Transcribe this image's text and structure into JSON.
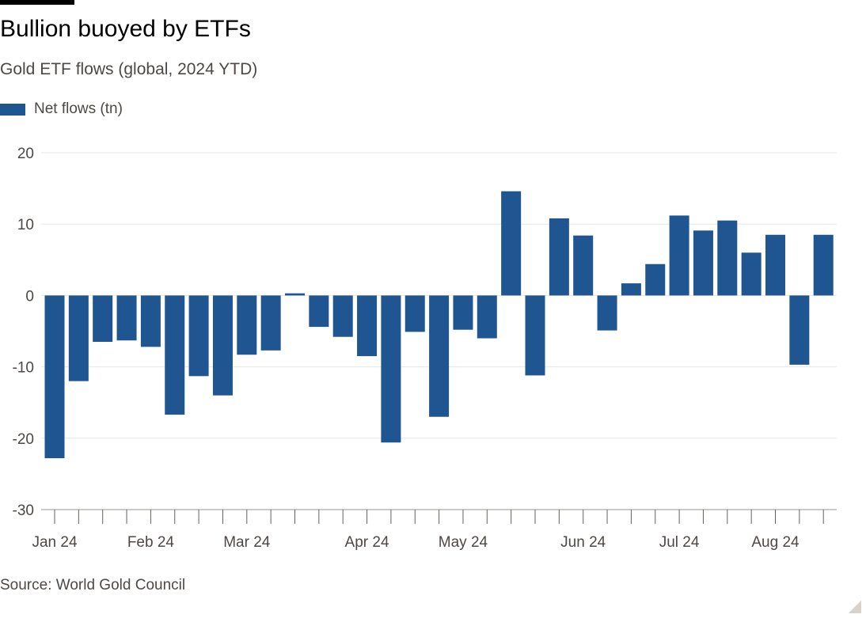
{
  "header": {
    "title": "Bullion buoyed by ETFs",
    "subtitle": "Gold ETF flows (global, 2024 YTD)"
  },
  "legend": {
    "label": "Net flows (tn)"
  },
  "footer": {
    "source": "Source: World Gold Council"
  },
  "colors": {
    "bar": "#1f5591",
    "grid": "#e7e6e4",
    "axis": "#66605c",
    "tick_label": "#4d4845"
  },
  "chart_data": {
    "type": "bar",
    "title": "Bullion buoyed by ETFs",
    "subtitle": "Gold ETF flows (global, 2024 YTD)",
    "xlabel": "",
    "ylabel": "",
    "ylim": [
      -30,
      20
    ],
    "yticks": [
      20,
      10,
      0,
      -10,
      -20,
      -30
    ],
    "grid": true,
    "legend_position": "top-left",
    "series": [
      {
        "name": "Net flows (tn)",
        "values": [
          -22.8,
          -12.0,
          -6.5,
          -6.3,
          -7.2,
          -16.7,
          -11.3,
          -14.0,
          -8.3,
          -7.7,
          0.3,
          -4.4,
          -5.8,
          -8.5,
          -20.6,
          -5.1,
          -17.0,
          -4.8,
          -6.0,
          14.6,
          -11.2,
          10.8,
          8.4,
          -4.9,
          1.7,
          4.4,
          11.2,
          9.1,
          10.5,
          6.0,
          8.5,
          -9.7,
          8.5
        ]
      }
    ],
    "x_tick_labels": [
      "Jan 24",
      "Feb 24",
      "Mar 24",
      "Apr 24",
      "May 24",
      "Jun 24",
      "Jul 24",
      "Aug 24"
    ],
    "x_tick_label_bar_index": [
      0,
      4,
      8,
      13,
      17,
      22,
      26,
      30
    ]
  }
}
